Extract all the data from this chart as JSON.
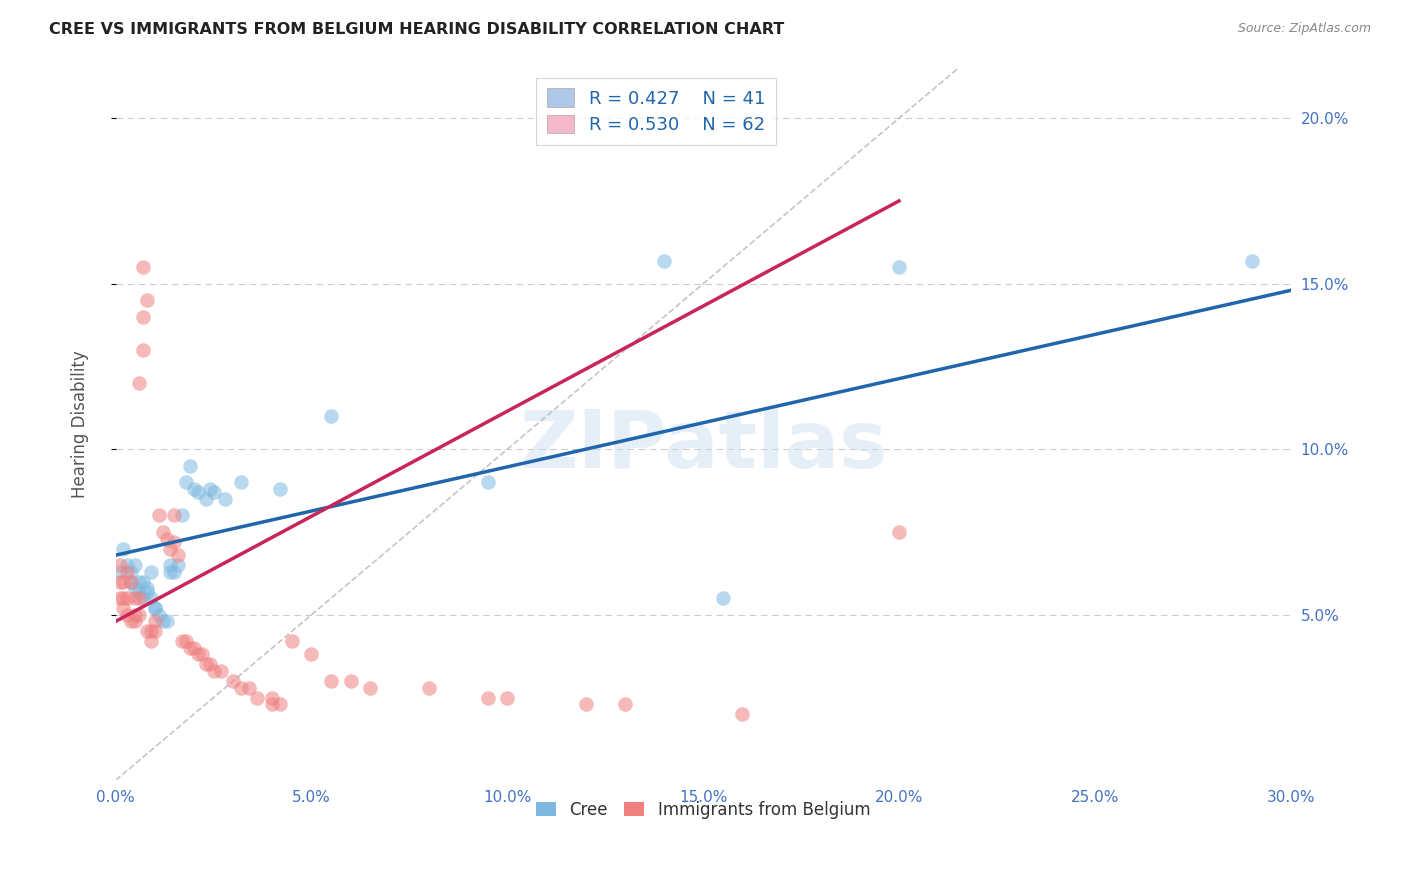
{
  "title": "CREE VS IMMIGRANTS FROM BELGIUM HEARING DISABILITY CORRELATION CHART",
  "source": "Source: ZipAtlas.com",
  "ylabel": "Hearing Disability",
  "xlim": [
    0.0,
    0.3
  ],
  "ylim": [
    0.0,
    0.215
  ],
  "xlabel_vals": [
    0.0,
    0.05,
    0.1,
    0.15,
    0.2,
    0.25,
    0.3
  ],
  "xlabel_ticks": [
    "0.0%",
    "5.0%",
    "10.0%",
    "15.0%",
    "20.0%",
    "25.0%",
    "30.0%"
  ],
  "ylabel_vals": [
    0.05,
    0.1,
    0.15,
    0.2
  ],
  "ylabel_ticks": [
    "5.0%",
    "10.0%",
    "15.0%",
    "20.0%"
  ],
  "legend_items": [
    {
      "label": "R = 0.427    N = 41",
      "facecolor": "#adc8e8"
    },
    {
      "label": "R = 0.530    N = 62",
      "facecolor": "#f5b8c8"
    }
  ],
  "bottom_legend": [
    {
      "label": "Cree",
      "facecolor": "#7db8e0"
    },
    {
      "label": "Immigrants from Belgium",
      "facecolor": "#f08080"
    }
  ],
  "watermark": "ZIPatlas",
  "cree_color": "#7db8e0",
  "belgium_color": "#f08080",
  "trendline_cree_color": "#2166ac",
  "trendline_belgium_color": "#c8255a",
  "diagonal_color": "#bbbbbb",
  "grid_color": "#cccccc",
  "background_color": "#ffffff",
  "cree_R": 0.427,
  "belgium_R": 0.53,
  "cree_points": [
    [
      0.001,
      0.063
    ],
    [
      0.002,
      0.07
    ],
    [
      0.003,
      0.065
    ],
    [
      0.004,
      0.063
    ],
    [
      0.004,
      0.06
    ],
    [
      0.005,
      0.058
    ],
    [
      0.005,
      0.065
    ],
    [
      0.006,
      0.06
    ],
    [
      0.006,
      0.057
    ],
    [
      0.007,
      0.055
    ],
    [
      0.007,
      0.06
    ],
    [
      0.008,
      0.058
    ],
    [
      0.008,
      0.057
    ],
    [
      0.009,
      0.063
    ],
    [
      0.009,
      0.055
    ],
    [
      0.01,
      0.052
    ],
    [
      0.01,
      0.052
    ],
    [
      0.011,
      0.05
    ],
    [
      0.012,
      0.048
    ],
    [
      0.013,
      0.048
    ],
    [
      0.014,
      0.063
    ],
    [
      0.014,
      0.065
    ],
    [
      0.015,
      0.063
    ],
    [
      0.016,
      0.065
    ],
    [
      0.017,
      0.08
    ],
    [
      0.018,
      0.09
    ],
    [
      0.019,
      0.095
    ],
    [
      0.02,
      0.088
    ],
    [
      0.021,
      0.087
    ],
    [
      0.023,
      0.085
    ],
    [
      0.024,
      0.088
    ],
    [
      0.025,
      0.087
    ],
    [
      0.028,
      0.085
    ],
    [
      0.032,
      0.09
    ],
    [
      0.042,
      0.088
    ],
    [
      0.055,
      0.11
    ],
    [
      0.095,
      0.09
    ],
    [
      0.14,
      0.157
    ],
    [
      0.155,
      0.055
    ],
    [
      0.2,
      0.155
    ],
    [
      0.29,
      0.157
    ]
  ],
  "belgium_points": [
    [
      0.001,
      0.065
    ],
    [
      0.001,
      0.06
    ],
    [
      0.001,
      0.055
    ],
    [
      0.002,
      0.06
    ],
    [
      0.002,
      0.055
    ],
    [
      0.002,
      0.052
    ],
    [
      0.003,
      0.063
    ],
    [
      0.003,
      0.055
    ],
    [
      0.003,
      0.05
    ],
    [
      0.004,
      0.06
    ],
    [
      0.004,
      0.048
    ],
    [
      0.005,
      0.055
    ],
    [
      0.005,
      0.05
    ],
    [
      0.005,
      0.048
    ],
    [
      0.006,
      0.055
    ],
    [
      0.006,
      0.05
    ],
    [
      0.006,
      0.12
    ],
    [
      0.007,
      0.13
    ],
    [
      0.007,
      0.14
    ],
    [
      0.007,
      0.155
    ],
    [
      0.008,
      0.145
    ],
    [
      0.008,
      0.045
    ],
    [
      0.009,
      0.045
    ],
    [
      0.009,
      0.042
    ],
    [
      0.01,
      0.048
    ],
    [
      0.01,
      0.045
    ],
    [
      0.011,
      0.08
    ],
    [
      0.012,
      0.075
    ],
    [
      0.013,
      0.073
    ],
    [
      0.014,
      0.07
    ],
    [
      0.015,
      0.08
    ],
    [
      0.015,
      0.072
    ],
    [
      0.016,
      0.068
    ],
    [
      0.017,
      0.042
    ],
    [
      0.018,
      0.042
    ],
    [
      0.019,
      0.04
    ],
    [
      0.02,
      0.04
    ],
    [
      0.021,
      0.038
    ],
    [
      0.022,
      0.038
    ],
    [
      0.023,
      0.035
    ],
    [
      0.024,
      0.035
    ],
    [
      0.025,
      0.033
    ],
    [
      0.027,
      0.033
    ],
    [
      0.03,
      0.03
    ],
    [
      0.032,
      0.028
    ],
    [
      0.034,
      0.028
    ],
    [
      0.036,
      0.025
    ],
    [
      0.04,
      0.025
    ],
    [
      0.04,
      0.023
    ],
    [
      0.042,
      0.023
    ],
    [
      0.045,
      0.042
    ],
    [
      0.05,
      0.038
    ],
    [
      0.055,
      0.03
    ],
    [
      0.06,
      0.03
    ],
    [
      0.065,
      0.028
    ],
    [
      0.08,
      0.028
    ],
    [
      0.095,
      0.025
    ],
    [
      0.1,
      0.025
    ],
    [
      0.12,
      0.023
    ],
    [
      0.13,
      0.023
    ],
    [
      0.16,
      0.02
    ],
    [
      0.2,
      0.075
    ]
  ],
  "cree_trend_x": [
    0.0,
    0.3
  ],
  "cree_trend_y": [
    0.068,
    0.148
  ],
  "belgium_trend_x": [
    0.0,
    0.2
  ],
  "belgium_trend_y": [
    0.048,
    0.175
  ]
}
